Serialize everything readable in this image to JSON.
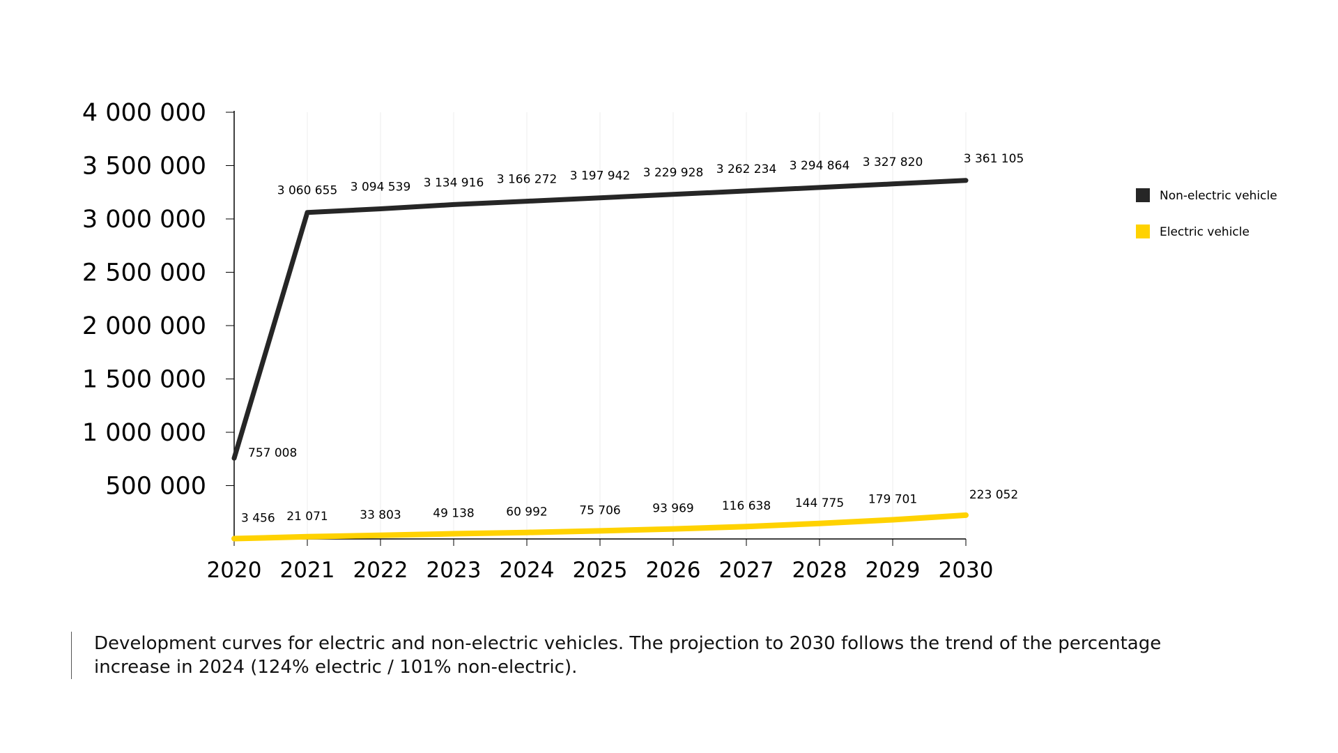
{
  "chart_data": {
    "type": "line",
    "x": [
      "2020",
      "2021",
      "2022",
      "2023",
      "2024",
      "2025",
      "2026",
      "2027",
      "2028",
      "2029",
      "2030"
    ],
    "series": [
      {
        "name": "Non-electric vehicle",
        "color": "#262626",
        "values": [
          757008,
          3060655,
          3094539,
          3134916,
          3166272,
          3197942,
          3229928,
          3262234,
          3294864,
          3327820,
          3361105
        ],
        "labels": [
          "757 008",
          "3 060 655",
          "3 094 539",
          "3 134 916",
          "3 166 272",
          "3 197 942",
          "3 229 928",
          "3 262 234",
          "3 294 864",
          "3 327 820",
          "3 361 105"
        ]
      },
      {
        "name": "Electric vehicle",
        "color": "#ffd200",
        "values": [
          3456,
          21071,
          33803,
          49138,
          60992,
          75706,
          93969,
          116638,
          144775,
          179701,
          223052
        ],
        "labels": [
          "3 456",
          "21 071",
          "33 803",
          "49 138",
          "60 992",
          "75 706",
          "93 969",
          "116 638",
          "144 775",
          "179 701",
          "223 052"
        ]
      }
    ],
    "y_ticks": [
      500000,
      1000000,
      1500000,
      2000000,
      2500000,
      3000000,
      3500000,
      4000000
    ],
    "y_tick_labels": [
      "500 000",
      "1 000 000",
      "1 500 000",
      "2 000 000",
      "2 500 000",
      "3 000 000",
      "3 500 000",
      "4 000 000"
    ],
    "ylim": [
      0,
      4000000
    ],
    "grid": "vertical",
    "legend_position": "right"
  },
  "caption": "Development curves for electric and non-electric vehicles. The projection to 2030 follows the trend of the percentage increase in 2024 (124% electric / 101% non-electric)."
}
